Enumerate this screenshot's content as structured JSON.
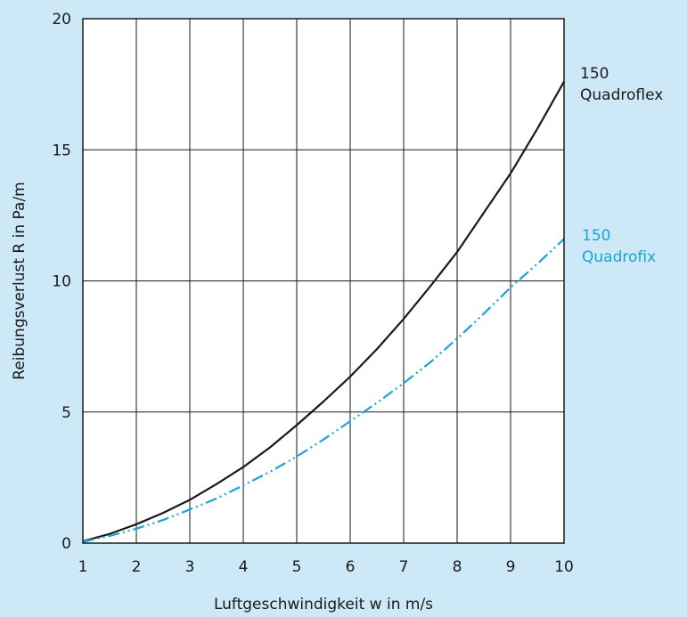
{
  "chart_data": {
    "type": "line",
    "title": "",
    "xlabel": "Luftgeschwindigkeit w in m/s",
    "ylabel": "Reibungsverlust R in Pa/m",
    "xlim": [
      1,
      10
    ],
    "ylim": [
      0,
      20
    ],
    "x_ticks": [
      1,
      2,
      3,
      4,
      5,
      6,
      7,
      8,
      9,
      10
    ],
    "y_ticks": [
      0,
      5,
      10,
      15,
      20
    ],
    "grid": true,
    "legend": "inline-right",
    "series": [
      {
        "name_line1": "150",
        "name_line2": "Quadroflex",
        "color": "#1a1a1a",
        "style": "solid",
        "x": [
          1,
          1.5,
          2,
          2.5,
          3,
          3.5,
          4,
          4.5,
          5,
          5.5,
          6,
          6.5,
          7,
          7.5,
          8,
          8.5,
          9,
          9.5,
          10
        ],
        "y": [
          0.07,
          0.35,
          0.72,
          1.15,
          1.65,
          2.25,
          2.9,
          3.65,
          4.5,
          5.4,
          6.35,
          7.4,
          8.55,
          9.8,
          11.1,
          12.6,
          14.1,
          15.8,
          17.6
        ]
      },
      {
        "name_line1": "150",
        "name_line2": "Quadrofix",
        "color": "#1ba3d6",
        "style": "dash-dot-dot",
        "x": [
          1,
          1.5,
          2,
          2.5,
          3,
          3.5,
          4,
          4.5,
          5,
          5.5,
          6,
          6.5,
          7,
          7.5,
          8,
          8.5,
          9,
          9.5,
          10
        ],
        "y": [
          0.05,
          0.27,
          0.55,
          0.88,
          1.28,
          1.7,
          2.2,
          2.72,
          3.3,
          3.95,
          4.65,
          5.35,
          6.1,
          6.9,
          7.8,
          8.75,
          9.75,
          10.65,
          11.6
        ]
      }
    ]
  }
}
